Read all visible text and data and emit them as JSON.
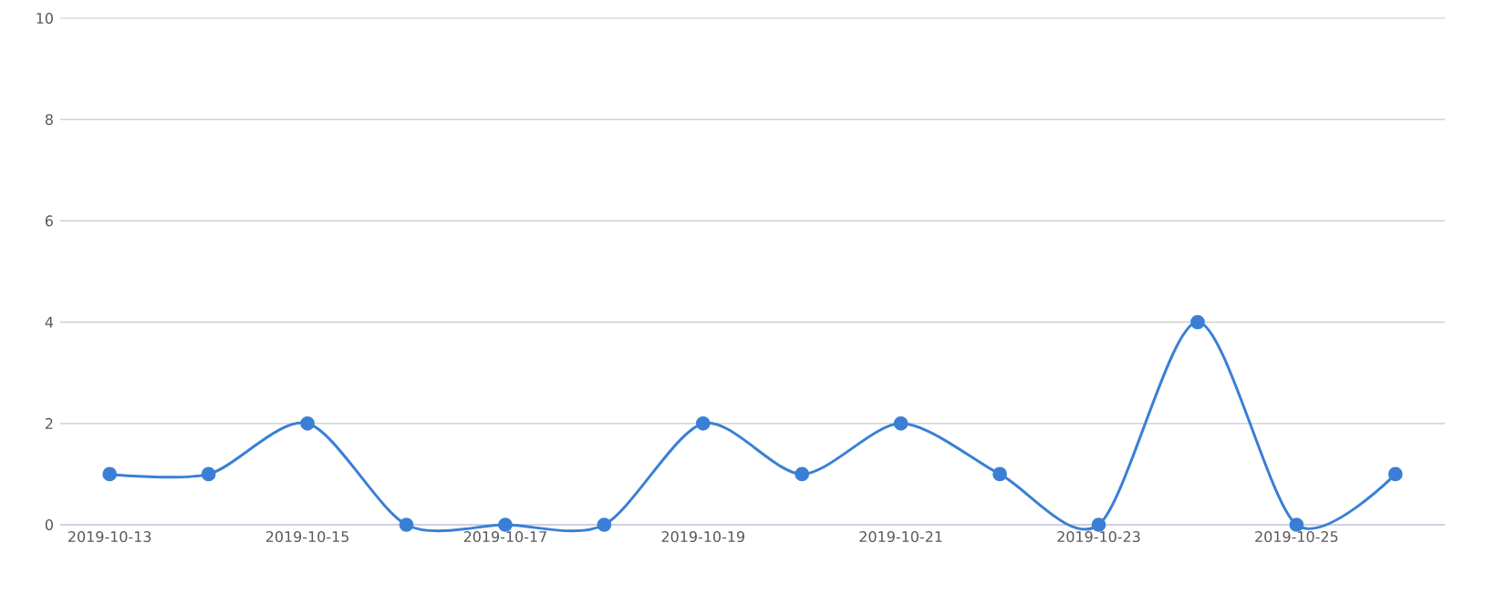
{
  "chart_data": {
    "type": "line",
    "categories": [
      "2019-10-13",
      null,
      "2019-10-15",
      null,
      "2019-10-17",
      null,
      "2019-10-19",
      null,
      "2019-10-21",
      null,
      "2019-10-23",
      null,
      "2019-10-25",
      null
    ],
    "values": [
      1,
      1,
      2,
      0,
      0,
      0,
      2,
      1,
      2,
      1,
      0,
      4,
      0,
      1
    ],
    "color": "#3a7fd5",
    "ylim": [
      0,
      10
    ],
    "yticks": [
      0,
      2,
      4,
      6,
      8,
      10
    ],
    "grid": "y",
    "marker": "circle",
    "line_style": "solid"
  }
}
